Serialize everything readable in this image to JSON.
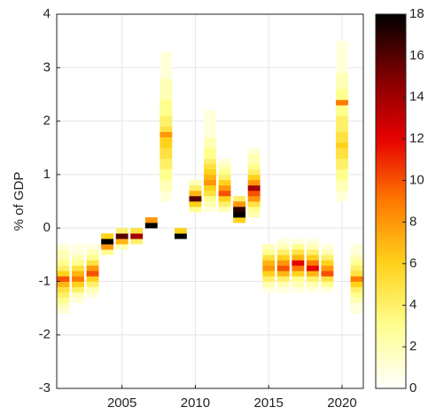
{
  "chart_data": {
    "type": "heatmap",
    "ylabel": "% of GDP",
    "xlim": [
      2000.55,
      2021.45
    ],
    "xticks": [
      2005,
      2010,
      2015,
      2020
    ],
    "ylim": [
      -3,
      4
    ],
    "yticks": [
      -3,
      -2,
      -1,
      0,
      1,
      2,
      3,
      4
    ],
    "grid": true,
    "colormap": [
      "#ffffff",
      "#ffff90",
      "#ffd21a",
      "#ff7a00",
      "#e60000",
      "#800000",
      "#000000"
    ],
    "clim": [
      0,
      18
    ],
    "cticks": [
      0,
      2,
      4,
      6,
      8,
      10,
      12,
      14,
      16,
      18
    ],
    "columns": [
      {
        "x": 2001,
        "bins": [
          -1.6,
          -1.5,
          -1.4,
          -1.3,
          -1.2,
          -1.1,
          -1.0,
          -0.9,
          -0.8,
          -0.7,
          -0.6,
          -0.5,
          -0.4,
          -0.3
        ],
        "counts": [
          1,
          2,
          3,
          4,
          5,
          7,
          10,
          6,
          4,
          3,
          2,
          2,
          1
        ]
      },
      {
        "x": 2002,
        "bins": [
          -1.4,
          -1.3,
          -1.2,
          -1.1,
          -1.0,
          -0.9,
          -0.8,
          -0.7,
          -0.6,
          -0.5,
          -0.4,
          -0.3
        ],
        "counts": [
          1,
          2,
          4,
          6,
          9,
          7,
          5,
          3,
          2,
          1,
          1
        ]
      },
      {
        "x": 2003,
        "bins": [
          -1.3,
          -1.2,
          -1.1,
          -1.0,
          -0.9,
          -0.8,
          -0.7,
          -0.6,
          -0.5,
          -0.4,
          -0.3
        ],
        "counts": [
          1,
          2,
          4,
          6,
          10,
          8,
          5,
          3,
          2,
          1
        ]
      },
      {
        "x": 2004,
        "bins": [
          -0.5,
          -0.4,
          -0.3,
          -0.2,
          -0.1
        ],
        "counts": [
          3,
          8,
          18,
          6
        ]
      },
      {
        "x": 2005,
        "bins": [
          -0.4,
          -0.3,
          -0.2,
          -0.1,
          0.0
        ],
        "counts": [
          2,
          7,
          16,
          4
        ]
      },
      {
        "x": 2006,
        "bins": [
          -0.3,
          -0.2,
          -0.1,
          0.0
        ],
        "counts": [
          4,
          14,
          5
        ]
      },
      {
        "x": 2007,
        "bins": [
          0.0,
          0.1,
          0.2
        ],
        "counts": [
          18,
          8
        ]
      },
      {
        "x": 2008,
        "bins": [
          0.5,
          0.6,
          0.7,
          0.8,
          0.9,
          1.0,
          1.1,
          1.2,
          1.3,
          1.4,
          1.5,
          1.6,
          1.7,
          1.8,
          1.9,
          2.0,
          2.1,
          2.2,
          2.3,
          2.4,
          2.5,
          2.6,
          2.7,
          2.8,
          2.9,
          3.0,
          3.1,
          3.2,
          3.3
        ],
        "counts": [
          1,
          1,
          2,
          2,
          3,
          3,
          4,
          4,
          5,
          5,
          6,
          6,
          8,
          5,
          4,
          4,
          3,
          3,
          3,
          2,
          2,
          2,
          2,
          1,
          1,
          1,
          1,
          1
        ]
      },
      {
        "x": 2009,
        "bins": [
          -0.2,
          -0.1,
          0.0
        ],
        "counts": [
          18,
          6
        ]
      },
      {
        "x": 2010,
        "bins": [
          0.3,
          0.4,
          0.5,
          0.6,
          0.7,
          0.8,
          0.9
        ],
        "counts": [
          3,
          6,
          16,
          7,
          4,
          2
        ]
      },
      {
        "x": 2011,
        "bins": [
          0.3,
          0.4,
          0.5,
          0.6,
          0.7,
          0.8,
          0.9,
          1.0,
          1.1,
          1.2,
          1.3,
          1.4,
          1.5,
          1.6,
          1.7,
          1.8,
          1.9,
          2.0,
          2.1,
          2.2
        ],
        "counts": [
          1,
          2,
          3,
          5,
          6,
          8,
          7,
          6,
          5,
          4,
          3,
          3,
          2,
          2,
          1,
          1,
          1,
          1,
          1
        ]
      },
      {
        "x": 2012,
        "bins": [
          0.3,
          0.4,
          0.5,
          0.6,
          0.7,
          0.8,
          0.9,
          1.0,
          1.1,
          1.2,
          1.3
        ],
        "counts": [
          2,
          4,
          6,
          10,
          8,
          6,
          4,
          3,
          2,
          1
        ]
      },
      {
        "x": 2013,
        "bins": [
          0.1,
          0.2,
          0.3,
          0.4,
          0.5,
          0.6
        ],
        "counts": [
          6,
          18,
          17,
          8,
          4
        ]
      },
      {
        "x": 2014,
        "bins": [
          0.2,
          0.3,
          0.4,
          0.5,
          0.6,
          0.7,
          0.8,
          0.9,
          1.0,
          1.1,
          1.2,
          1.3,
          1.4,
          1.5
        ],
        "counts": [
          2,
          3,
          5,
          8,
          10,
          14,
          8,
          6,
          4,
          3,
          2,
          2,
          1
        ]
      },
      {
        "x": 2015,
        "bins": [
          -1.2,
          -1.1,
          -1.0,
          -0.9,
          -0.8,
          -0.7,
          -0.6,
          -0.5,
          -0.4,
          -0.3
        ],
        "counts": [
          1,
          2,
          4,
          6,
          8,
          7,
          5,
          3,
          2
        ]
      },
      {
        "x": 2016,
        "bins": [
          -1.2,
          -1.1,
          -1.0,
          -0.9,
          -0.8,
          -0.7,
          -0.6,
          -0.5,
          -0.4,
          -0.3,
          -0.2
        ],
        "counts": [
          1,
          2,
          4,
          7,
          10,
          8,
          6,
          4,
          2,
          1
        ]
      },
      {
        "x": 2017,
        "bins": [
          -1.2,
          -1.1,
          -1.0,
          -0.9,
          -0.8,
          -0.7,
          -0.6,
          -0.5,
          -0.4,
          -0.3,
          -0.2
        ],
        "counts": [
          1,
          2,
          3,
          6,
          9,
          12,
          7,
          5,
          3,
          1
        ]
      },
      {
        "x": 2018,
        "bins": [
          -1.2,
          -1.1,
          -1.0,
          -0.9,
          -0.8,
          -0.7,
          -0.6,
          -0.5,
          -0.4,
          -0.3,
          -0.2
        ],
        "counts": [
          1,
          2,
          4,
          7,
          12,
          9,
          6,
          4,
          2,
          1
        ]
      },
      {
        "x": 2019,
        "bins": [
          -1.2,
          -1.1,
          -1.0,
          -0.9,
          -0.8,
          -0.7,
          -0.6,
          -0.5,
          -0.4,
          -0.3
        ],
        "counts": [
          1,
          3,
          5,
          10,
          8,
          6,
          4,
          2,
          1
        ]
      },
      {
        "x": 2020,
        "bins": [
          0.5,
          0.6,
          0.7,
          0.8,
          0.9,
          1.0,
          1.1,
          1.2,
          1.3,
          1.4,
          1.5,
          1.6,
          1.7,
          1.8,
          1.9,
          2.0,
          2.1,
          2.2,
          2.3,
          2.4,
          2.5,
          2.6,
          2.7,
          2.8,
          2.9,
          3.0,
          3.1,
          3.2,
          3.3,
          3.4,
          3.5
        ],
        "counts": [
          1,
          1,
          2,
          2,
          3,
          3,
          4,
          4,
          5,
          5,
          6,
          5,
          5,
          4,
          4,
          4,
          3,
          3,
          9,
          3,
          3,
          2,
          2,
          2,
          1,
          1,
          1,
          1,
          1,
          1
        ]
      },
      {
        "x": 2021,
        "bins": [
          -1.6,
          -1.5,
          -1.4,
          -1.3,
          -1.2,
          -1.1,
          -1.0,
          -0.9,
          -0.8,
          -0.7,
          -0.6,
          -0.5,
          -0.4,
          -0.3
        ],
        "counts": [
          1,
          1,
          2,
          3,
          4,
          6,
          9,
          5,
          4,
          3,
          2,
          1,
          1
        ]
      }
    ]
  }
}
